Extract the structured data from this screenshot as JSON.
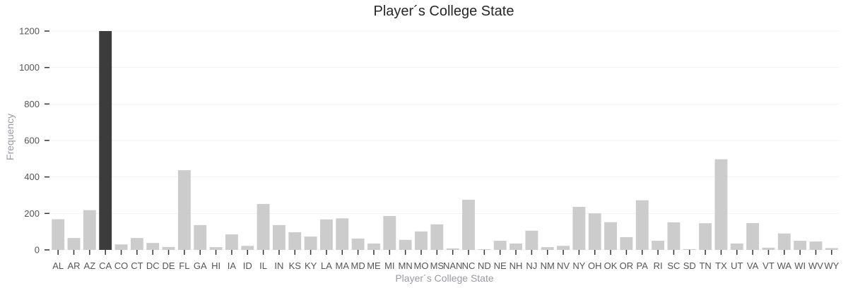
{
  "chart_data": {
    "type": "bar",
    "title": "Player´s College State",
    "xlabel": "Player´s College State",
    "ylabel": "Frequency",
    "ylim": [
      0,
      1200
    ],
    "yticks": [
      0,
      200,
      400,
      600,
      800,
      1000,
      1200
    ],
    "grid": true,
    "highlight_category": "CA",
    "colors": {
      "bar": "#cccccc",
      "highlight": "#3c3c3c"
    },
    "categories": [
      "AL",
      "AR",
      "AZ",
      "CA",
      "CO",
      "CT",
      "DC",
      "DE",
      "FL",
      "GA",
      "HI",
      "IA",
      "ID",
      "IL",
      "IN",
      "KS",
      "KY",
      "LA",
      "MA",
      "MD",
      "ME",
      "MI",
      "MN",
      "MO",
      "MS",
      "NAN",
      "NC",
      "ND",
      "NE",
      "NH",
      "NJ",
      "NM",
      "NV",
      "NY",
      "OH",
      "OK",
      "OR",
      "PA",
      "RI",
      "SC",
      "SD",
      "TN",
      "TX",
      "UT",
      "VA",
      "VT",
      "WA",
      "WI",
      "WV",
      "WY"
    ],
    "values": [
      168,
      65,
      218,
      1205,
      30,
      65,
      38,
      16,
      437,
      136,
      15,
      85,
      22,
      252,
      136,
      97,
      73,
      167,
      173,
      62,
      35,
      186,
      55,
      101,
      140,
      8,
      275,
      4,
      50,
      35,
      105,
      15,
      22,
      236,
      200,
      152,
      70,
      272,
      50,
      151,
      4,
      146,
      497,
      35,
      147,
      12,
      90,
      50,
      46,
      10
    ]
  }
}
